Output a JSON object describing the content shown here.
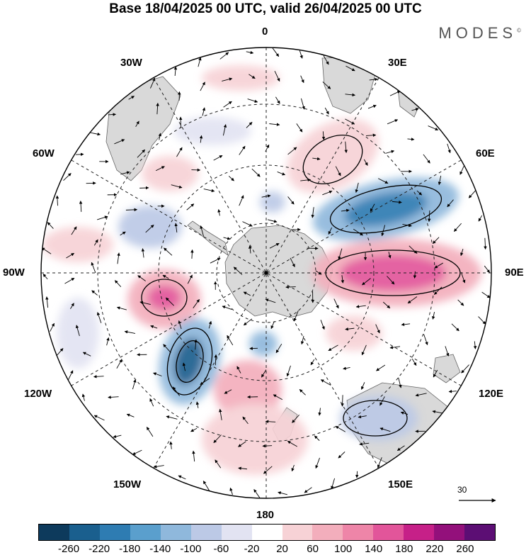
{
  "title": "Base 18/04/2025 00 UTC, valid 26/04/2025 00 UTC",
  "brand": "MODES",
  "brand_mark": "©",
  "meridians": {
    "top": "0",
    "bottom": "180",
    "left": "90W",
    "right": "90E",
    "w30": "30W",
    "e30": "30E",
    "w60": "60W",
    "e60": "60E",
    "w120": "120W",
    "e120": "120E",
    "w150": "150W",
    "e150": "150E"
  },
  "reference_vector": "30",
  "colorbar": {
    "ticks": [
      "-260",
      "-220",
      "-180",
      "-140",
      "-100",
      "-60",
      "-20",
      "20",
      "60",
      "100",
      "140",
      "180",
      "220",
      "260"
    ],
    "colors": [
      "#0d3a5c",
      "#1a5f8e",
      "#2e7cb2",
      "#5a9fcd",
      "#8fb8dc",
      "#bcc9e6",
      "#e2e3f2",
      "#ffffff",
      "#f7d2d6",
      "#f3aebc",
      "#ee85a8",
      "#e2559a",
      "#c62088",
      "#93107b",
      "#5c0e74"
    ]
  },
  "colors": {
    "land": "#d9d9d9",
    "ocean": "#ffffff",
    "grid": "#222222",
    "coast": "#555555"
  }
}
